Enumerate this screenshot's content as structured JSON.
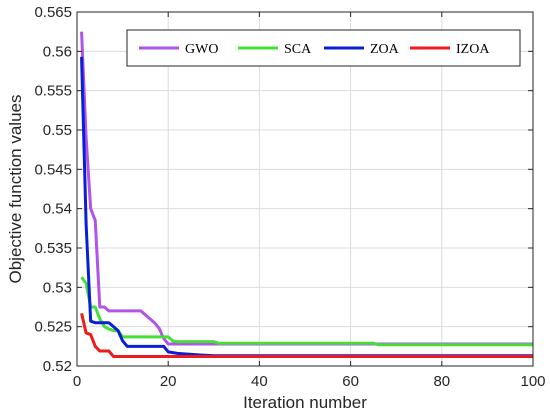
{
  "chart_data": {
    "type": "line",
    "title": "",
    "xlabel": "Iteration number",
    "ylabel": "Objective function values",
    "xlim": [
      0,
      100
    ],
    "ylim": [
      0.52,
      0.565
    ],
    "xticks": [
      0,
      20,
      40,
      60,
      80,
      100
    ],
    "xtick_labels": [
      "0",
      "20",
      "40",
      "60",
      "80",
      "100"
    ],
    "yticks": [
      0.52,
      0.525,
      0.53,
      0.535,
      0.54,
      0.545,
      0.55,
      0.555,
      0.56,
      0.565
    ],
    "ytick_labels": [
      "0.52",
      "0.525",
      "0.53",
      "0.535",
      "0.54",
      "0.545",
      "0.55",
      "0.555",
      "0.56",
      "0.565"
    ],
    "grid": true,
    "legend_position": "top",
    "series": [
      {
        "name": "GWO",
        "color": "#b055e8",
        "points": [
          [
            1,
            0.5625
          ],
          [
            2,
            0.549
          ],
          [
            3,
            0.54
          ],
          [
            4,
            0.5385
          ],
          [
            5,
            0.5275
          ],
          [
            6,
            0.5275
          ],
          [
            7,
            0.527
          ],
          [
            14,
            0.527
          ],
          [
            15,
            0.5265
          ],
          [
            17,
            0.5255
          ],
          [
            18,
            0.5248
          ],
          [
            19,
            0.5235
          ],
          [
            20,
            0.5228
          ],
          [
            100,
            0.5228
          ]
        ]
      },
      {
        "name": "SCA",
        "color": "#44e036",
        "points": [
          [
            1,
            0.5313
          ],
          [
            2,
            0.5305
          ],
          [
            3,
            0.5275
          ],
          [
            4,
            0.5275
          ],
          [
            5,
            0.526
          ],
          [
            6,
            0.525
          ],
          [
            7,
            0.5247
          ],
          [
            8,
            0.5245
          ],
          [
            9,
            0.5245
          ],
          [
            10,
            0.5237
          ],
          [
            20,
            0.5237
          ],
          [
            21,
            0.5232
          ],
          [
            22,
            0.5231
          ],
          [
            30,
            0.5231
          ],
          [
            31,
            0.5229
          ],
          [
            65,
            0.5229
          ],
          [
            66,
            0.5227
          ],
          [
            100,
            0.5227
          ]
        ]
      },
      {
        "name": "ZOA",
        "color": "#0a1fd4",
        "points": [
          [
            1,
            0.5593
          ],
          [
            2,
            0.538
          ],
          [
            3,
            0.5257
          ],
          [
            4,
            0.5255
          ],
          [
            7,
            0.5255
          ],
          [
            8,
            0.525
          ],
          [
            9,
            0.5245
          ],
          [
            10,
            0.5232
          ],
          [
            11,
            0.5225
          ],
          [
            19,
            0.5225
          ],
          [
            20,
            0.5218
          ],
          [
            21,
            0.5217
          ],
          [
            22,
            0.5216
          ],
          [
            27,
            0.5214
          ],
          [
            30,
            0.5213
          ],
          [
            100,
            0.5213
          ]
        ]
      },
      {
        "name": "IZOA",
        "color": "#ef1a1a",
        "points": [
          [
            1,
            0.5267
          ],
          [
            2,
            0.5242
          ],
          [
            3,
            0.524
          ],
          [
            4,
            0.5225
          ],
          [
            5,
            0.5219
          ],
          [
            7,
            0.5219
          ],
          [
            8,
            0.5212
          ],
          [
            100,
            0.5212
          ]
        ]
      }
    ]
  }
}
